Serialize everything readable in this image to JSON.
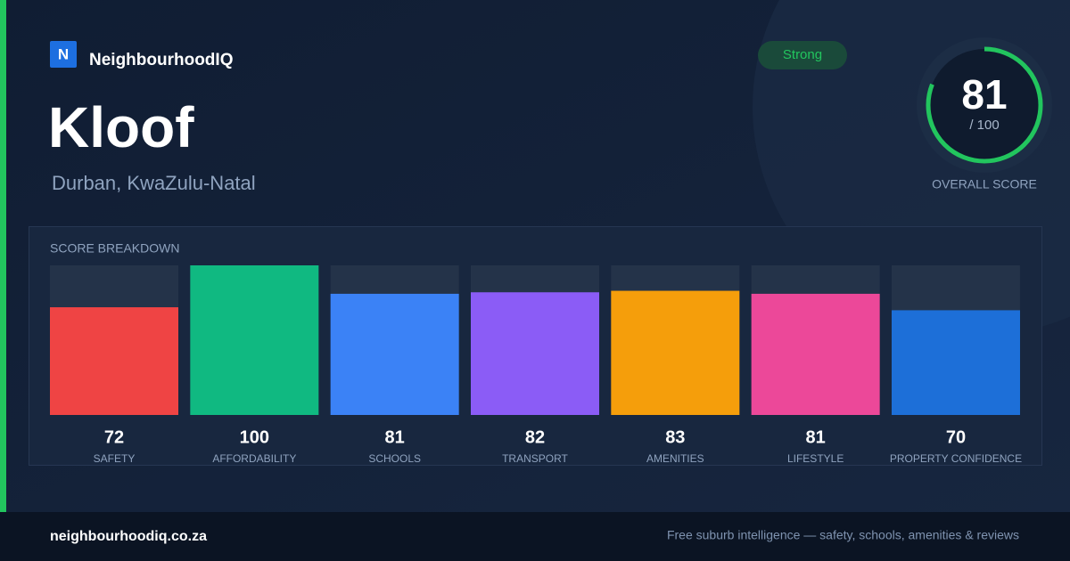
{
  "brand": {
    "logo": "N",
    "name": "NeighbourhoodIQ"
  },
  "place": {
    "title": "Kloof",
    "subtitle": "Durban, KwaZulu-Natal",
    "badge": "Strong"
  },
  "overall": {
    "score": 81,
    "score_of": "/ 100",
    "label": "OVERALL SCORE",
    "range": [
      0,
      100
    ],
    "color": "#22c55e"
  },
  "chart_data": {
    "type": "bar",
    "title": "SCORE BREAKDOWN",
    "categories": [
      "SAFETY",
      "AFFORDABILITY",
      "SCHOOLS",
      "TRANSPORT",
      "AMENITIES",
      "LIFESTYLE",
      "PROPERTY CONFIDENCE"
    ],
    "values": [
      72,
      100,
      81,
      82,
      83,
      81,
      70
    ],
    "colors": [
      "#ef4444",
      "#10b981",
      "#3b82f6",
      "#8b5cf6",
      "#f59e0b",
      "#ec4899",
      "#1d6fd8"
    ],
    "ylim": [
      0,
      100
    ]
  },
  "footer": {
    "domain": "neighbourhoodiq.co.za",
    "tagline": "Free suburb intelligence — safety, schools, amenities & reviews"
  }
}
